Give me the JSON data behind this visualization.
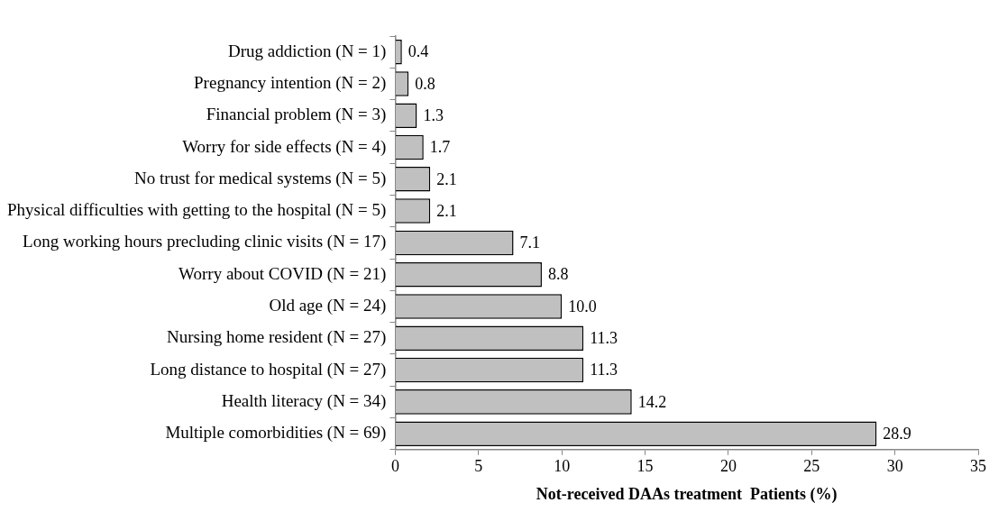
{
  "chart_data": {
    "type": "bar",
    "orientation": "horizontal",
    "xlabel": "Not-received DAAs treatment  Patients (%)",
    "categories": [
      "Drug addiction (N = 1)",
      "Pregnancy intention (N = 2)",
      "Financial problem (N = 3)",
      "Worry for side effects (N = 4)",
      "No trust for medical systems (N = 5)",
      "Physical difficulties with getting to the hospital (N = 5)",
      "Long working hours precluding clinic visits (N = 17)",
      "Worry about COVID (N = 21)",
      "Old age (N = 24)",
      "Nursing home resident (N = 27)",
      "Long distance to hospital (N = 27)",
      "Health literacy (N = 34)",
      "Multiple comorbidities (N = 69)"
    ],
    "values": [
      0.4,
      0.8,
      1.3,
      1.7,
      2.1,
      2.1,
      7.1,
      8.8,
      10.0,
      11.3,
      11.3,
      14.2,
      28.9
    ],
    "value_labels": [
      "0.4",
      "0.8",
      "1.3",
      "1.7",
      "2.1",
      "2.1",
      "7.1",
      "8.8",
      "10.0",
      "11.3",
      "11.3",
      "14.2",
      "28.9"
    ],
    "color": "#c0c0c0",
    "xlim": [
      0,
      35
    ],
    "xticks": [
      0,
      5,
      10,
      15,
      20,
      25,
      30,
      35
    ],
    "legend": false
  }
}
